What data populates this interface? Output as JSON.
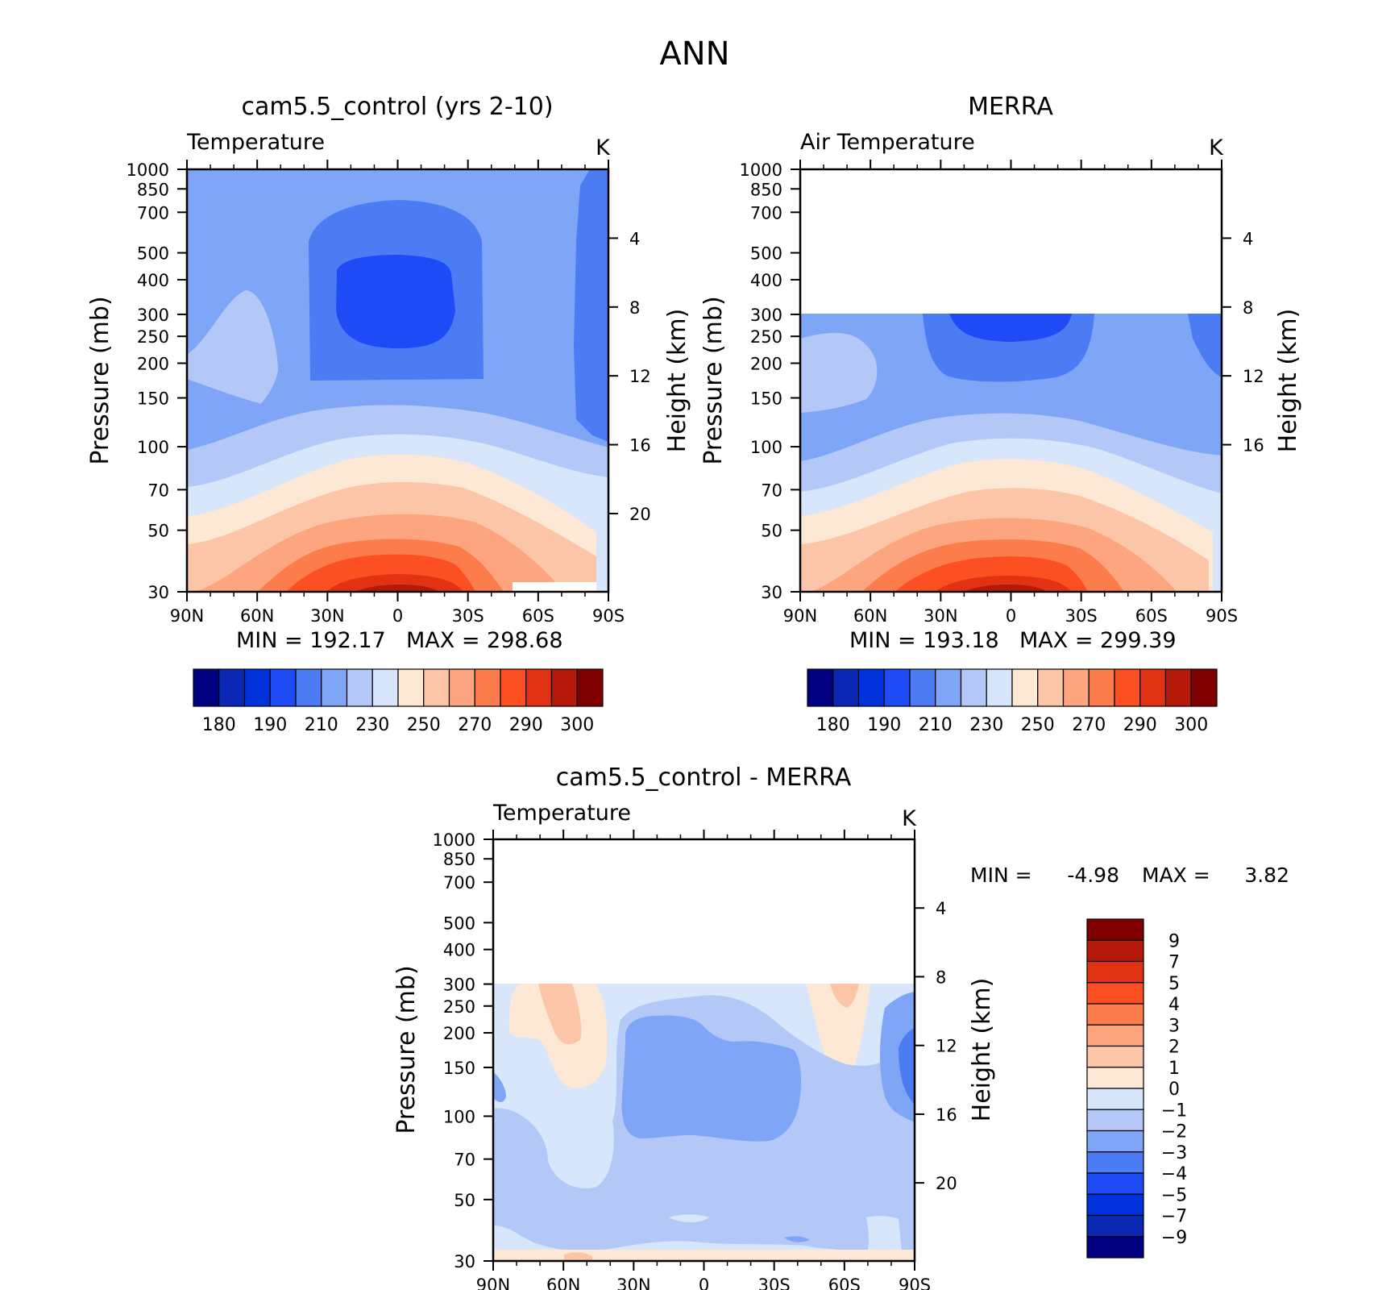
{
  "figure_title": "ANN",
  "colors": {
    "abs_scale": [
      "#000080",
      "#0a28b4",
      "#0032dc",
      "#1e4bf5",
      "#4b7cf4",
      "#7fa5f7",
      "#b4c8f8",
      "#d8e6fb",
      "#fde8d6",
      "#fcc5a7",
      "#fca57f",
      "#fc7d4b",
      "#fc5023",
      "#e13214",
      "#b4190a",
      "#800000"
    ],
    "diff_scale": [
      "#000080",
      "#0a28b4",
      "#0032dc",
      "#1e4bf5",
      "#4b7cf4",
      "#7fa5f7",
      "#b4c8f8",
      "#d8e6fb",
      "#fde8d6",
      "#fcc5a7",
      "#fca57f",
      "#fc7d4b",
      "#fc5023",
      "#e13214",
      "#b4190a",
      "#800000"
    ]
  },
  "chart_data": [
    {
      "type": "heatmap",
      "title": "cam5.5_control (yrs 2-10)",
      "variable": "Temperature",
      "units": "K",
      "ylabel": "Pressure (mb)",
      "ylabel_right": "Height (km)",
      "x_ticks": [
        "90N",
        "60N",
        "30N",
        "0",
        "30S",
        "60S",
        "90S"
      ],
      "y_ticks": [
        "30",
        "50",
        "70",
        "100",
        "150",
        "200",
        "250",
        "300",
        "400",
        "500",
        "700",
        "850",
        "1000"
      ],
      "y_right_ticks": [
        "4",
        "8",
        "12",
        "16",
        "20"
      ],
      "ylim": [
        1000,
        30
      ],
      "min_label": "MIN =  192.17",
      "max_label": "MAX =  298.68",
      "colorbar_labels": [
        "180",
        "190",
        "210",
        "230",
        "250",
        "270",
        "290",
        "300"
      ]
    },
    {
      "type": "heatmap",
      "title": "MERRA",
      "variable": "Air Temperature",
      "units": "K",
      "ylabel": "Pressure (mb)",
      "ylabel_right": "Height (km)",
      "x_ticks": [
        "90N",
        "60N",
        "30N",
        "0",
        "30S",
        "60S",
        "90S"
      ],
      "y_ticks": [
        "30",
        "50",
        "70",
        "100",
        "150",
        "200",
        "250",
        "300",
        "400",
        "500",
        "700",
        "850",
        "1000"
      ],
      "y_right_ticks": [
        "4",
        "8",
        "12",
        "16"
      ],
      "ylim": [
        1000,
        30
      ],
      "min_label": "MIN =  193.18",
      "max_label": "MAX =  299.39",
      "colorbar_labels": [
        "180",
        "190",
        "210",
        "230",
        "250",
        "270",
        "290",
        "300"
      ]
    },
    {
      "type": "heatmap",
      "title": "cam5.5_control - MERRA",
      "variable": "Temperature",
      "units": "K",
      "ylabel": "Pressure (mb)",
      "ylabel_right": "Height (km)",
      "x_ticks": [
        "90N",
        "60N",
        "30N",
        "0",
        "30S",
        "60S",
        "90S"
      ],
      "y_ticks": [
        "30",
        "50",
        "70",
        "100",
        "150",
        "200",
        "250",
        "300",
        "400",
        "500",
        "700",
        "850",
        "1000"
      ],
      "y_right_ticks": [
        "4",
        "8",
        "12",
        "16",
        "20"
      ],
      "ylim": [
        1000,
        30
      ],
      "min_label": "MIN =",
      "min_value": "-4.98",
      "max_label": "MAX =",
      "max_value": "3.82",
      "colorbar_labels": [
        "9",
        "7",
        "5",
        "4",
        "3",
        "2",
        "1",
        "0",
        "-1",
        "-2",
        "-3",
        "-4",
        "-5",
        "-7",
        "-9"
      ]
    }
  ]
}
